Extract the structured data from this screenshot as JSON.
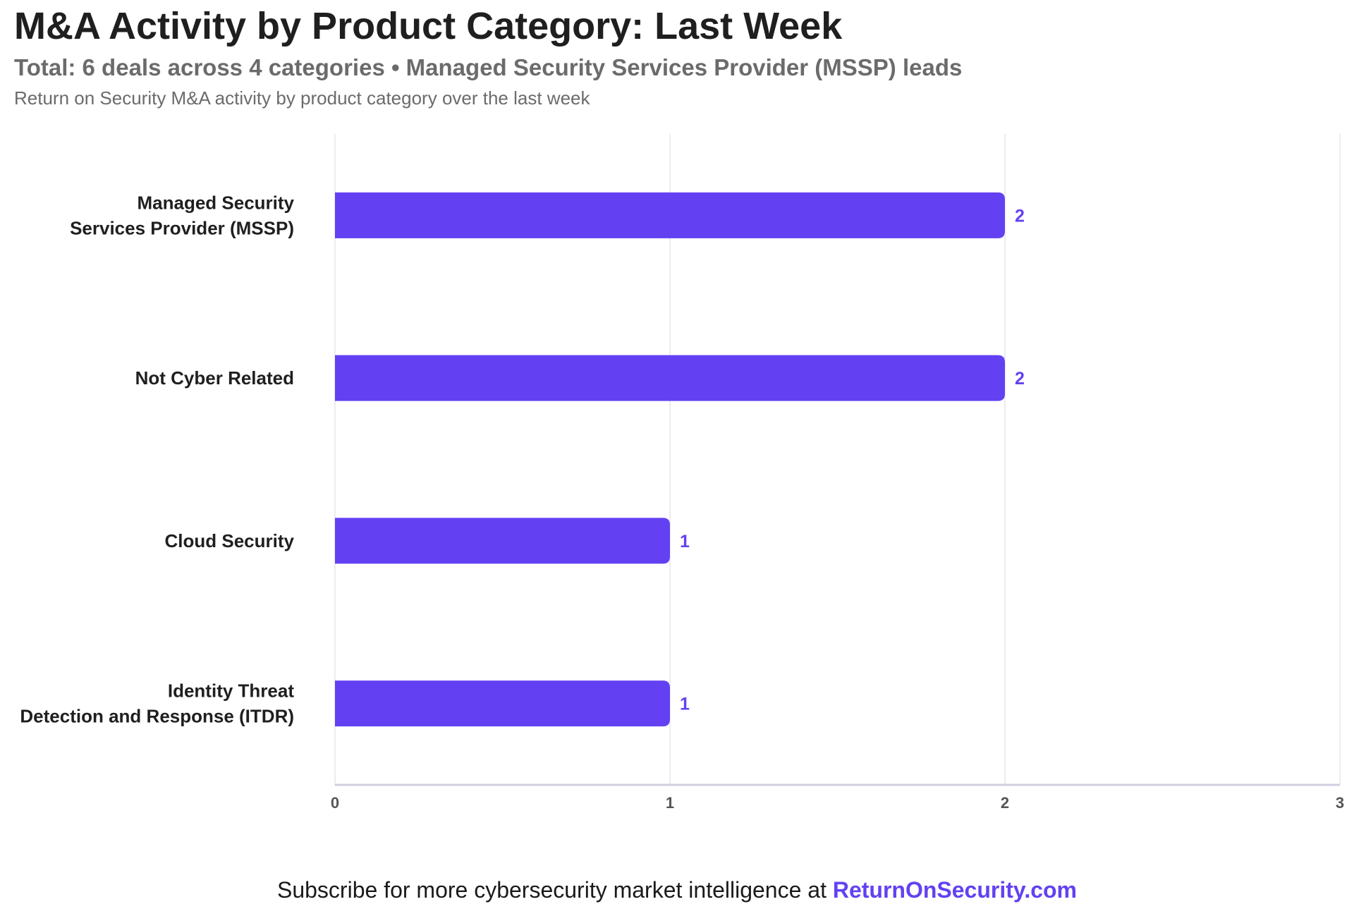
{
  "header": {
    "title": "M&A Activity by Product Category: Last Week",
    "subtitle": "Total: 6 deals across 4 categories • Managed Security Services Provider (MSSP) leads",
    "description": "Return on Security M&A activity by product category over the last week"
  },
  "footer": {
    "text": "Subscribe for more cybersecurity market intelligence at ",
    "link_text": "ReturnOnSecurity.com"
  },
  "colors": {
    "bar": "#6341f2",
    "value_label": "#6341f2",
    "grid": "#ececf2",
    "axis": "#cfcfe0",
    "category_label": "#1f1f1f",
    "tick_label": "#555555"
  },
  "chart_data": {
    "type": "bar",
    "orientation": "horizontal",
    "categories": [
      [
        "Managed Security",
        "Services Provider (MSSP)"
      ],
      [
        "Not Cyber Related"
      ],
      [
        "Cloud Security"
      ],
      [
        "Identity Threat",
        "Detection and Response (ITDR)"
      ]
    ],
    "values": [
      2,
      2,
      1,
      1
    ],
    "xlim": [
      0,
      3
    ],
    "xticks": [
      "0",
      "1",
      "2",
      "3"
    ],
    "data_labels": [
      "2",
      "2",
      "1",
      "1"
    ],
    "grid": true,
    "legend": "none"
  }
}
